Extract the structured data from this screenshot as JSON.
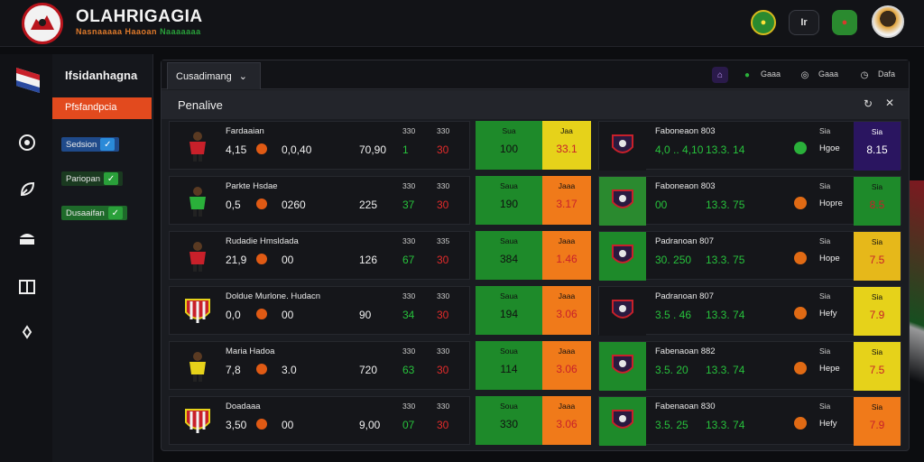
{
  "header": {
    "title": "OLAHRIGAGIA",
    "subtitle_a": "Nasnaaaaa Haaoan",
    "subtitle_b": "Naaaaaaa",
    "btn_text": "Ir"
  },
  "sidebar": {
    "title": "Ifsidanhagna",
    "active": "Pfsfandpcia",
    "items": [
      {
        "label": "Sedsion"
      },
      {
        "label": "Pariopan"
      },
      {
        "label": "Dusaaifan"
      }
    ]
  },
  "main": {
    "tab_label": "Cusadimang",
    "toolbar": [
      {
        "label": "Gaaa"
      },
      {
        "label": "Gaaa"
      },
      {
        "label": "Dafa"
      }
    ],
    "section_title": "Penalive",
    "rows": [
      {
        "name": "Fardaaian",
        "v1": "4,15",
        "v2": "0,0,40",
        "v3": "70,90",
        "h1": "330",
        "h2": "330",
        "s1": "1",
        "s2": "30",
        "odd_a_lbl": "Sua",
        "odd_a_val": "100",
        "odd_b_lbl": "Jaa",
        "odd_b_val": "33.1",
        "r_name": "Faboneaon 803",
        "r_v1": "4,0 .. 4,10",
        "r_v2": "13.3. 14",
        "r_h": "Sia",
        "r_lbl": "Hgoe",
        "r_odd": "8.15"
      },
      {
        "name": "Parkte Hsdae",
        "v1": "0,5",
        "v2": "0260",
        "v3": "225",
        "h1": "330",
        "h2": "330",
        "s1": "37",
        "s2": "30",
        "odd_a_lbl": "Saua",
        "odd_a_val": "190",
        "odd_b_lbl": "Jaaa",
        "odd_b_val": "3.17",
        "r_name": "Faboneaon 803",
        "r_v1": "00",
        "r_v2": "13.3. 75",
        "r_h": "Sia",
        "r_lbl": "Hopre",
        "r_odd": "8.5"
      },
      {
        "name": "Rudadie Hmsldada",
        "v1": "21,9",
        "v2": "00",
        "v3": "126",
        "h1": "330",
        "h2": "335",
        "s1": "67",
        "s2": "30",
        "odd_a_lbl": "Saua",
        "odd_a_val": "384",
        "odd_b_lbl": "Jaaa",
        "odd_b_val": "1.46",
        "r_name": "Padranoan 807",
        "r_v1": "30. 250",
        "r_v2": "13.3. 75",
        "r_h": "Sia",
        "r_lbl": "Hope",
        "r_odd": "7.5"
      },
      {
        "name": "Doldue Murlone. Hudacn",
        "v1": "0,0",
        "v2": "00",
        "v3": "90",
        "h1": "330",
        "h2": "330",
        "s1": "34",
        "s2": "30",
        "odd_a_lbl": "Saua",
        "odd_a_val": "194",
        "odd_b_lbl": "Jaaa",
        "odd_b_val": "3.06",
        "r_name": "Padranoan 807",
        "r_v1": "3.5 . 46",
        "r_v2": "13.3. 74",
        "r_h": "Sia",
        "r_lbl": "Hefy",
        "r_odd": "7.9"
      },
      {
        "name": "Maria Hadoa",
        "v1": "7,8",
        "v2": "3.0",
        "v3": "720",
        "h1": "330",
        "h2": "330",
        "s1": "63",
        "s2": "30",
        "odd_a_lbl": "Soua",
        "odd_a_val": "114",
        "odd_b_lbl": "Jaaa",
        "odd_b_val": "3.06",
        "r_name": "Fabenaoan 882",
        "r_v1": "3.5. 20",
        "r_v2": "13.3. 74",
        "r_h": "Sia",
        "r_lbl": "Hepe",
        "r_odd": "7.5"
      },
      {
        "name": "Doadaaa",
        "v1": "3,50",
        "v2": "00",
        "v3": "9,00",
        "h1": "330",
        "h2": "330",
        "s1": "07",
        "s2": "30",
        "odd_a_lbl": "Soua",
        "odd_a_val": "330",
        "odd_b_lbl": "Jaaa",
        "odd_b_val": "3.06",
        "r_name": "Fabenaoan 830",
        "r_v1": "3.5. 25",
        "r_v2": "13.3. 74",
        "r_h": "Sia",
        "r_lbl": "Hefy",
        "r_odd": "7.9"
      }
    ]
  },
  "colors": {
    "accent_orange": "#e24a1e",
    "green": "#1e8a2a",
    "yellow": "#e6d21a",
    "orange": "#f07a1a",
    "purple": "#2a1560"
  }
}
